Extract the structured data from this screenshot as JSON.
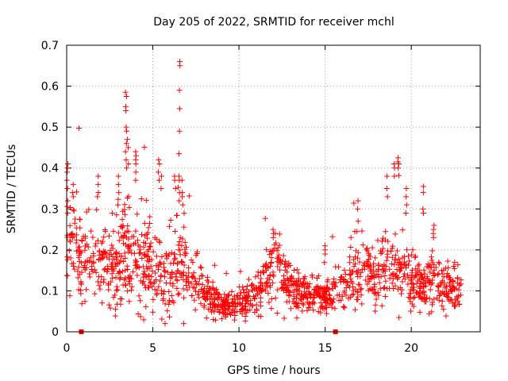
{
  "chart_data": {
    "type": "scatter",
    "title": "Day 205 of 2022, SRMTID for receiver mchl",
    "xlabel": "GPS time / hours",
    "ylabel": "SRMTID / TECUs",
    "xlim": [
      0,
      24
    ],
    "ylim": [
      0,
      0.7
    ],
    "grid": true,
    "marker": "+",
    "colors": {
      "series": "#ff0000",
      "axis": "#000000",
      "grid": "#a0a0a0"
    },
    "x_ticks": [
      {
        "value": 0,
        "label": "0"
      },
      {
        "value": 5,
        "label": "5"
      },
      {
        "value": 10,
        "label": "10"
      },
      {
        "value": 15,
        "label": "15"
      },
      {
        "value": 20,
        "label": "20"
      }
    ],
    "y_ticks": [
      {
        "value": 0,
        "label": "0"
      },
      {
        "value": 0.1,
        "label": "0.1"
      },
      {
        "value": 0.2,
        "label": "0.2"
      },
      {
        "value": 0.3,
        "label": "0.3"
      },
      {
        "value": 0.4,
        "label": "0.4"
      },
      {
        "value": 0.5,
        "label": "0.5"
      },
      {
        "value": 0.6,
        "label": "0.6"
      },
      {
        "value": 0.7,
        "label": "0.7"
      }
    ],
    "square_markers": [
      {
        "x": 0.85,
        "y": 0
      },
      {
        "x": 15.6,
        "y": 0
      }
    ],
    "envelope": {
      "x": [
        0,
        0.5,
        1,
        1.5,
        2,
        2.5,
        3,
        3.5,
        4,
        4.5,
        5,
        5.5,
        6,
        6.5,
        7,
        7.5,
        8,
        8.5,
        9,
        9.5,
        10,
        10.5,
        11,
        11.5,
        12,
        12.5,
        13,
        13.5,
        14,
        14.5,
        15,
        15.5,
        16,
        16.5,
        17,
        17.5,
        18,
        18.5,
        19,
        19.5,
        20,
        20.5,
        21,
        21.5,
        22,
        22.5,
        22.9
      ],
      "center": [
        0.22,
        0.2,
        0.18,
        0.17,
        0.16,
        0.15,
        0.17,
        0.2,
        0.19,
        0.16,
        0.14,
        0.13,
        0.14,
        0.17,
        0.14,
        0.11,
        0.09,
        0.075,
        0.065,
        0.065,
        0.07,
        0.08,
        0.09,
        0.13,
        0.16,
        0.14,
        0.11,
        0.1,
        0.09,
        0.085,
        0.08,
        0.09,
        0.11,
        0.13,
        0.14,
        0.15,
        0.14,
        0.15,
        0.16,
        0.14,
        0.12,
        0.11,
        0.12,
        0.12,
        0.1,
        0.1,
        0.1
      ],
      "spread": [
        0.07,
        0.06,
        0.05,
        0.045,
        0.045,
        0.05,
        0.06,
        0.07,
        0.065,
        0.055,
        0.05,
        0.05,
        0.05,
        0.06,
        0.05,
        0.035,
        0.025,
        0.02,
        0.015,
        0.015,
        0.018,
        0.02,
        0.025,
        0.035,
        0.04,
        0.035,
        0.03,
        0.025,
        0.025,
        0.02,
        0.02,
        0.025,
        0.035,
        0.04,
        0.045,
        0.045,
        0.045,
        0.045,
        0.05,
        0.045,
        0.035,
        0.03,
        0.035,
        0.035,
        0.03,
        0.03,
        0.03
      ]
    },
    "point_count": 1500,
    "spikes": [
      {
        "x": 0.05,
        "values": [
          0.41,
          0.4,
          0.39,
          0.37,
          0.35,
          0.32,
          0.29
        ]
      },
      {
        "x": 0.35,
        "values": [
          0.36,
          0.34,
          0.33
        ]
      },
      {
        "x": 1.8,
        "values": [
          0.38,
          0.36,
          0.33
        ]
      },
      {
        "x": 3.0,
        "values": [
          0.38,
          0.36,
          0.34,
          0.31
        ]
      },
      {
        "x": 3.45,
        "values": [
          0.585,
          0.575,
          0.55,
          0.54,
          0.5,
          0.49,
          0.46,
          0.44,
          0.42,
          0.4
        ]
      },
      {
        "x": 3.55,
        "values": [
          0.47,
          0.45,
          0.41
        ]
      },
      {
        "x": 4.0,
        "values": [
          0.44,
          0.43,
          0.42,
          0.41,
          0.39,
          0.37
        ]
      },
      {
        "x": 5.35,
        "values": [
          0.42,
          0.41,
          0.39,
          0.37
        ]
      },
      {
        "x": 5.5,
        "values": [
          0.38,
          0.35
        ]
      },
      {
        "x": 6.3,
        "values": [
          0.38,
          0.37,
          0.35
        ]
      },
      {
        "x": 6.55,
        "values": [
          0.66,
          0.65,
          0.59,
          0.545,
          0.49,
          0.435,
          0.38,
          0.37,
          0.34,
          0.32
        ]
      },
      {
        "x": 6.7,
        "values": [
          0.37,
          0.34,
          0.33,
          0.31
        ]
      },
      {
        "x": 12.0,
        "values": [
          0.25,
          0.24,
          0.23
        ]
      },
      {
        "x": 15.0,
        "values": [
          0.21,
          0.2,
          0.19
        ]
      },
      {
        "x": 16.9,
        "values": [
          0.32,
          0.3,
          0.27
        ]
      },
      {
        "x": 18.6,
        "values": [
          0.38,
          0.35,
          0.33
        ]
      },
      {
        "x": 19.0,
        "values": [
          0.41,
          0.4,
          0.38
        ]
      },
      {
        "x": 19.25,
        "values": [
          0.425,
          0.415,
          0.41,
          0.4
        ]
      },
      {
        "x": 19.7,
        "values": [
          0.35,
          0.33,
          0.31,
          0.29
        ]
      },
      {
        "x": 20.7,
        "values": [
          0.355,
          0.34,
          0.3,
          0.29
        ]
      },
      {
        "x": 21.3,
        "values": [
          0.26,
          0.25,
          0.24,
          0.23
        ]
      },
      {
        "x": 22.5,
        "values": [
          0.17,
          0.16
        ]
      }
    ]
  }
}
